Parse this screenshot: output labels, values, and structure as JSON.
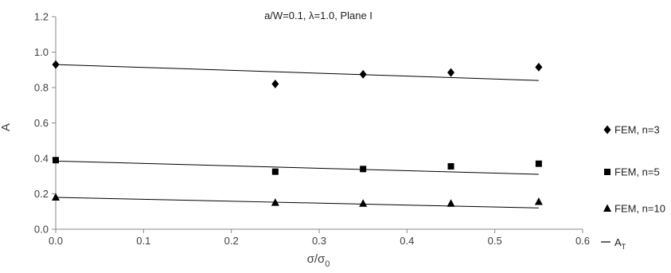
{
  "chart_data": {
    "type": "scatter",
    "title": "a/W=0.1, λ=1.0, Plane I",
    "xlabel": "σ/σ",
    "xlabel_sub": "0",
    "ylabel": "A",
    "xlim": [
      0,
      0.6
    ],
    "ylim": [
      0,
      1.2
    ],
    "x_ticks": [
      "0.0",
      "0.1",
      "0.2",
      "0.3",
      "0.4",
      "0.5",
      "0.6"
    ],
    "y_ticks": [
      "0.0",
      "0.2",
      "0.4",
      "0.6",
      "0.8",
      "1.0",
      "1.2"
    ],
    "grid": false,
    "legend_position": "right",
    "series": [
      {
        "name": "FEM, n=3",
        "marker": "diamond",
        "x": [
          0.0,
          0.25,
          0.35,
          0.45,
          0.55
        ],
        "y": [
          0.93,
          0.82,
          0.875,
          0.885,
          0.915
        ]
      },
      {
        "name": "FEM, n=5",
        "marker": "square",
        "x": [
          0.0,
          0.25,
          0.35,
          0.45,
          0.55
        ],
        "y": [
          0.39,
          0.325,
          0.34,
          0.355,
          0.37
        ]
      },
      {
        "name": "FEM, n=10",
        "marker": "triangle",
        "x": [
          0.0,
          0.25,
          0.35,
          0.45,
          0.55
        ],
        "y": [
          0.18,
          0.15,
          0.145,
          0.145,
          0.155
        ]
      }
    ],
    "trend_lines": [
      {
        "x": [
          0.0,
          0.55
        ],
        "y": [
          0.93,
          0.84
        ]
      },
      {
        "x": [
          0.0,
          0.55
        ],
        "y": [
          0.385,
          0.31
        ]
      },
      {
        "x": [
          0.0,
          0.55
        ],
        "y": [
          0.18,
          0.12
        ]
      }
    ],
    "trend_legend": {
      "label": "A",
      "label_sub": "T"
    }
  }
}
